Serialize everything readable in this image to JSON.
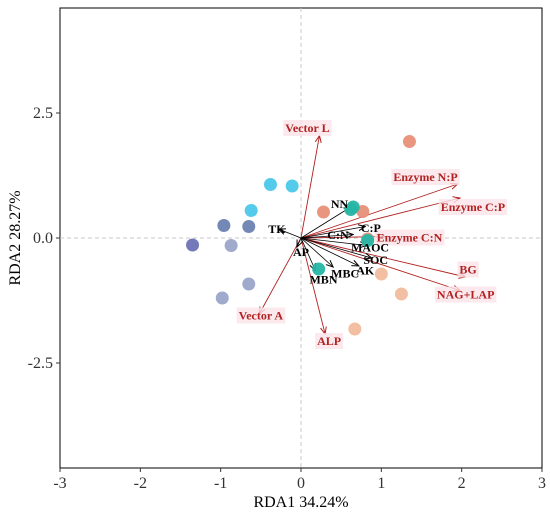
{
  "chart_data": {
    "type": "scatter",
    "xlabel": "RDA1 34.24%",
    "ylabel": "RDA2 28.27%",
    "xlim": [
      -3,
      3
    ],
    "ylim": [
      -4.6,
      4.6
    ],
    "xticks": [
      -3,
      -2,
      -1,
      0,
      1,
      2,
      3
    ],
    "yticks": [
      -2.5,
      0.0,
      2.5
    ],
    "ytick_labels": [
      "-2.5",
      "0.0",
      "2.5"
    ],
    "grid": false,
    "reference_lines": {
      "x": 0,
      "y": 0
    },
    "points": [
      {
        "x": 1.35,
        "y": 1.93,
        "color": "#e8907a"
      },
      {
        "x": 0.28,
        "y": 0.52,
        "color": "#e8907a"
      },
      {
        "x": 0.77,
        "y": 0.53,
        "color": "#e8907a"
      },
      {
        "x": 0.83,
        "y": -0.02,
        "color": "#e8907a"
      },
      {
        "x": 0.65,
        "y": 0.62,
        "color": "#26b5a5"
      },
      {
        "x": 0.62,
        "y": 0.57,
        "color": "#26b5a5"
      },
      {
        "x": 0.83,
        "y": -0.05,
        "color": "#26b5a5"
      },
      {
        "x": 0.22,
        "y": -0.62,
        "color": "#26b5a5"
      },
      {
        "x": 1.0,
        "y": -0.72,
        "color": "#f2bc9d"
      },
      {
        "x": 1.25,
        "y": -1.12,
        "color": "#f2bc9d"
      },
      {
        "x": 0.67,
        "y": -1.82,
        "color": "#f2bc9d"
      },
      {
        "x": -0.38,
        "y": 1.07,
        "color": "#4cc8ea"
      },
      {
        "x": -0.11,
        "y": 1.04,
        "color": "#4cc8ea"
      },
      {
        "x": -0.62,
        "y": 0.55,
        "color": "#4cc8ea"
      },
      {
        "x": -1.35,
        "y": -0.14,
        "color": "#6d73b5"
      },
      {
        "x": -0.96,
        "y": 0.25,
        "color": "#6b82b0"
      },
      {
        "x": -0.65,
        "y": 0.23,
        "color": "#6b82b0"
      },
      {
        "x": -0.87,
        "y": -0.15,
        "color": "#9aa5c9"
      },
      {
        "x": -0.65,
        "y": -0.92,
        "color": "#9aa5c9"
      },
      {
        "x": -0.98,
        "y": -1.2,
        "color": "#9aa5c9"
      }
    ],
    "vectors": [
      {
        "label": "Vector L",
        "x": 0.23,
        "y": 2.05,
        "color": "#b22222"
      },
      {
        "label": "Enzyme N:P",
        "x": 1.95,
        "y": 1.08,
        "color": "#b22222"
      },
      {
        "label": "Enzyme C:P",
        "x": 1.98,
        "y": 0.8,
        "color": "#b22222"
      },
      {
        "x": 1.05,
        "y": 0.03,
        "color": "#b22222"
      },
      {
        "label": "BG",
        "x": 2.05,
        "y": -0.78,
        "color": "#b22222"
      },
      {
        "label": "NAG+LAP",
        "x": 1.98,
        "y": -1.05,
        "color": "#b22222"
      },
      {
        "label": "Vector A",
        "x": -0.52,
        "y": -1.52,
        "color": "#b22222"
      },
      {
        "label": "ALP",
        "x": 0.3,
        "y": -1.92,
        "color": "#b22222"
      },
      {
        "label": "NN",
        "x": 0.62,
        "y": 0.62,
        "color": "#000000"
      },
      {
        "label": "C:P",
        "x": 0.8,
        "y": 0.23,
        "color": "#000000"
      },
      {
        "label": "C:N",
        "x": 0.65,
        "y": 0.07,
        "color": "#000000"
      },
      {
        "label": "MAOC",
        "x": 0.82,
        "y": -0.15,
        "color": "#000000"
      },
      {
        "label": "SOC",
        "x": 0.88,
        "y": -0.4,
        "color": "#000000"
      },
      {
        "label": "AK",
        "x": 0.72,
        "y": -0.56,
        "color": "#000000"
      },
      {
        "label": "MBC",
        "x": 0.4,
        "y": -0.58,
        "color": "#000000"
      },
      {
        "label": "MBN",
        "x": 0.18,
        "y": -0.65,
        "color": "#000000"
      },
      {
        "label": "TK",
        "x": -0.28,
        "y": 0.18,
        "color": "#000000"
      },
      {
        "label": "AP",
        "x": -0.05,
        "y": -0.18,
        "color": "#000000"
      }
    ],
    "vector_labels": [
      {
        "text": "Vector L",
        "x": 0.08,
        "y": 2.2,
        "color": "#b22222",
        "box": true
      },
      {
        "text": "Enzyme N:P",
        "x": 1.55,
        "y": 1.22,
        "color": "#b22222",
        "box": true
      },
      {
        "text": "Enzyme C:P",
        "x": 2.14,
        "y": 0.62,
        "color": "#b22222",
        "box": true
      },
      {
        "text": "Enzyme C:N",
        "x": 1.35,
        "y": 0.01,
        "color": "#b22222",
        "box": true
      },
      {
        "text": "BG",
        "x": 2.08,
        "y": -0.63,
        "color": "#b22222",
        "box": true
      },
      {
        "text": "NAG+LAP",
        "x": 2.05,
        "y": -1.13,
        "color": "#b22222",
        "box": true
      },
      {
        "text": "Vector A",
        "x": -0.5,
        "y": -1.55,
        "color": "#b22222",
        "box": true
      },
      {
        "text": "ALP",
        "x": 0.35,
        "y": -2.06,
        "color": "#b22222",
        "box": true
      },
      {
        "text": "NN",
        "x": 0.48,
        "y": 0.68,
        "color": "#000000",
        "box": false
      },
      {
        "text": "C:P",
        "x": 0.87,
        "y": 0.2,
        "color": "#000000",
        "box": false
      },
      {
        "text": "C:N",
        "x": 0.46,
        "y": 0.06,
        "color": "#000000",
        "box": false
      },
      {
        "text": "MAOC",
        "x": 0.86,
        "y": -0.19,
        "color": "#000000",
        "box": false
      },
      {
        "text": "SOC",
        "x": 0.93,
        "y": -0.44,
        "color": "#000000",
        "box": false
      },
      {
        "text": "AK",
        "x": 0.8,
        "y": -0.65,
        "color": "#000000",
        "box": false
      },
      {
        "text": "MBC",
        "x": 0.55,
        "y": -0.71,
        "color": "#000000",
        "box": false
      },
      {
        "text": "MBN",
        "x": 0.28,
        "y": -0.83,
        "color": "#000000",
        "box": false
      },
      {
        "text": "TK",
        "x": -0.3,
        "y": 0.18,
        "color": "#000000",
        "box": false
      },
      {
        "text": "AP",
        "x": 0.0,
        "y": -0.28,
        "color": "#000000",
        "box": false
      }
    ]
  }
}
